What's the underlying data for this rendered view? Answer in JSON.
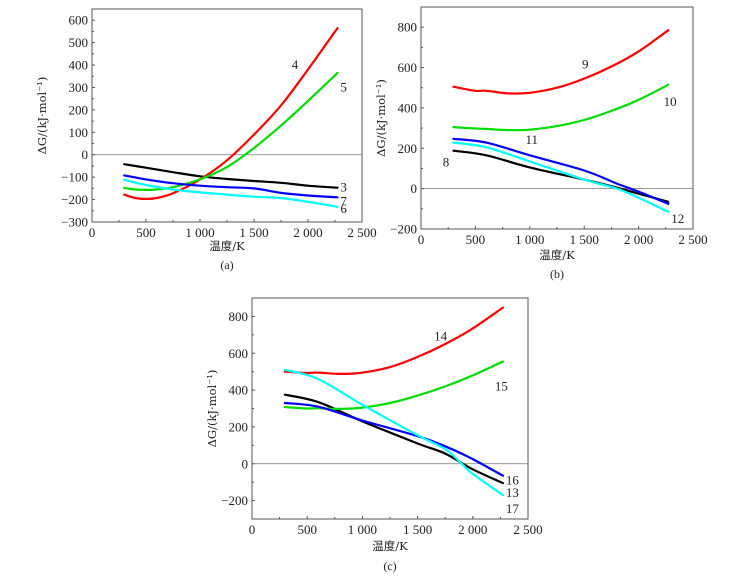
{
  "chart_data": [
    {
      "id": "a",
      "type": "line",
      "caption": "(a)",
      "xlabel": "温度/K",
      "ylabel": "ΔG/(kJ·mol⁻¹)",
      "xlim": [
        0,
        2500
      ],
      "ylim": [
        -300,
        650
      ],
      "xticks": [
        0,
        500,
        1000,
        1500,
        2000,
        2500
      ],
      "xtick_labels": [
        "0",
        "500",
        "1 000",
        "1 500",
        "2 000",
        "2 500"
      ],
      "yticks": [
        -300,
        -200,
        -100,
        0,
        100,
        200,
        300,
        400,
        500,
        600
      ],
      "ytick_labels": [
        "−300",
        "−200",
        "−100",
        "0",
        "100",
        "200",
        "300",
        "400",
        "500",
        "600"
      ],
      "zero_line": true,
      "series": [
        {
          "name": "3",
          "color": "#000000",
          "x": [
            298,
            500,
            750,
            1000,
            1250,
            1500,
            1750,
            2000,
            2273
          ],
          "y": [
            -42,
            -58,
            -78,
            -96,
            -108,
            -117,
            -125,
            -138,
            -147
          ],
          "label_at": [
            2300,
            -147
          ]
        },
        {
          "name": "4",
          "color": "#ff0000",
          "x": [
            298,
            400,
            500,
            600,
            750,
            1000,
            1250,
            1500,
            1750,
            2000,
            2273
          ],
          "y": [
            -178,
            -193,
            -197,
            -193,
            -172,
            -110,
            -25,
            90,
            220,
            380,
            565
          ],
          "label_at": [
            1850,
            400
          ]
        },
        {
          "name": "5",
          "color": "#00dd00",
          "x": [
            298,
            400,
            500,
            600,
            750,
            1000,
            1250,
            1500,
            1750,
            2000,
            2273
          ],
          "y": [
            -148,
            -155,
            -157,
            -155,
            -145,
            -110,
            -55,
            30,
            130,
            240,
            365
          ],
          "label_at": [
            2300,
            300
          ]
        },
        {
          "name": "6",
          "color": "#00ffff",
          "x": [
            298,
            500,
            750,
            1000,
            1250,
            1500,
            1750,
            2000,
            2273
          ],
          "y": [
            -112,
            -135,
            -155,
            -168,
            -178,
            -187,
            -193,
            -210,
            -232
          ],
          "label_at": [
            2300,
            -243
          ]
        },
        {
          "name": "7",
          "color": "#0000ff",
          "x": [
            298,
            500,
            750,
            1000,
            1250,
            1500,
            1750,
            2000,
            2273
          ],
          "y": [
            -92,
            -110,
            -127,
            -138,
            -145,
            -150,
            -170,
            -182,
            -190
          ],
          "label_at": [
            2300,
            -208
          ]
        }
      ]
    },
    {
      "id": "b",
      "type": "line",
      "caption": "(b)",
      "xlabel": "温度/K",
      "ylabel": "ΔG/(kJ·mol⁻¹)",
      "xlim": [
        0,
        2500
      ],
      "ylim": [
        -200,
        900
      ],
      "xticks": [
        0,
        500,
        1000,
        1500,
        2000,
        2500
      ],
      "xtick_labels": [
        "0",
        "500",
        "1 000",
        "1 500",
        "2 000",
        "2 500"
      ],
      "yticks": [
        -200,
        0,
        200,
        400,
        600,
        800
      ],
      "ytick_labels": [
        "−200",
        "0",
        "200",
        "400",
        "600",
        "800"
      ],
      "zero_line": true,
      "series": [
        {
          "name": "8",
          "color": "#000000",
          "x": [
            298,
            600,
            1000,
            1500,
            1800,
            2000,
            2273
          ],
          "y": [
            188,
            165,
            105,
            45,
            5,
            -25,
            -65
          ],
          "label_at": [
            200,
            130
          ]
        },
        {
          "name": "9",
          "color": "#ff0000",
          "x": [
            298,
            500,
            600,
            800,
            1000,
            1250,
            1500,
            1750,
            2000,
            2273
          ],
          "y": [
            505,
            485,
            485,
            472,
            475,
            500,
            545,
            605,
            680,
            785
          ],
          "label_at": [
            1480,
            615
          ]
        },
        {
          "name": "10",
          "color": "#00dd00",
          "x": [
            298,
            500,
            600,
            800,
            1000,
            1250,
            1500,
            1750,
            2000,
            2273
          ],
          "y": [
            305,
            298,
            296,
            290,
            292,
            310,
            340,
            385,
            440,
            515
          ],
          "label_at": [
            2230,
            430
          ]
        },
        {
          "name": "11",
          "color": "#0000ff",
          "x": [
            298,
            600,
            1000,
            1500,
            1800,
            2000,
            2273
          ],
          "y": [
            247,
            228,
            165,
            90,
            25,
            -15,
            -75
          ],
          "label_at": [
            960,
            240
          ]
        },
        {
          "name": "12",
          "color": "#00ffff",
          "x": [
            298,
            600,
            1000,
            1500,
            1800,
            2000,
            2273
          ],
          "y": [
            228,
            205,
            135,
            45,
            0,
            -45,
            -115
          ],
          "label_at": [
            2300,
            -150
          ]
        }
      ]
    },
    {
      "id": "c",
      "type": "line",
      "caption": "(c)",
      "xlabel": "温度/K",
      "ylabel": "ΔG/(kJ·mol⁻¹)",
      "xlim": [
        0,
        2500
      ],
      "ylim": [
        -300,
        900
      ],
      "xticks": [
        0,
        500,
        1000,
        1500,
        2000,
        2500
      ],
      "xtick_labels": [
        "0",
        "500",
        "1 000",
        "1 500",
        "2 000",
        "2 500"
      ],
      "yticks": [
        -200,
        0,
        200,
        400,
        600,
        800
      ],
      "ytick_labels": [
        "−200",
        "0",
        "200",
        "400",
        "600",
        "800"
      ],
      "zero_line": true,
      "series": [
        {
          "name": "13",
          "color": "#000000",
          "x": [
            298,
            600,
            1000,
            1500,
            1750,
            2000,
            2273
          ],
          "y": [
            375,
            335,
            230,
            110,
            55,
            -30,
            -105
          ],
          "label_at": [
            2300,
            -160
          ]
        },
        {
          "name": "14",
          "color": "#ff0000",
          "x": [
            298,
            500,
            600,
            800,
            1000,
            1250,
            1500,
            1750,
            2000,
            2273
          ],
          "y": [
            500,
            493,
            495,
            488,
            495,
            525,
            580,
            650,
            735,
            848
          ],
          "label_at": [
            1650,
            690
          ]
        },
        {
          "name": "15",
          "color": "#00dd00",
          "x": [
            298,
            500,
            600,
            800,
            1000,
            1250,
            1500,
            1750,
            2000,
            2273
          ],
          "y": [
            308,
            300,
            302,
            298,
            305,
            330,
            370,
            420,
            480,
            555
          ],
          "label_at": [
            2200,
            420
          ]
        },
        {
          "name": "16",
          "color": "#0000ff",
          "x": [
            298,
            600,
            1000,
            1500,
            1750,
            2000,
            2273
          ],
          "y": [
            330,
            310,
            235,
            150,
            95,
            25,
            -65
          ],
          "label_at": [
            2300,
            -90
          ]
        },
        {
          "name": "17",
          "color": "#00ffff",
          "x": [
            298,
            600,
            1000,
            1500,
            1750,
            1900,
            2000,
            2273
          ],
          "y": [
            510,
            460,
            320,
            155,
            80,
            0,
            -55,
            -170
          ],
          "label_at": [
            2300,
            -245
          ]
        }
      ]
    }
  ]
}
